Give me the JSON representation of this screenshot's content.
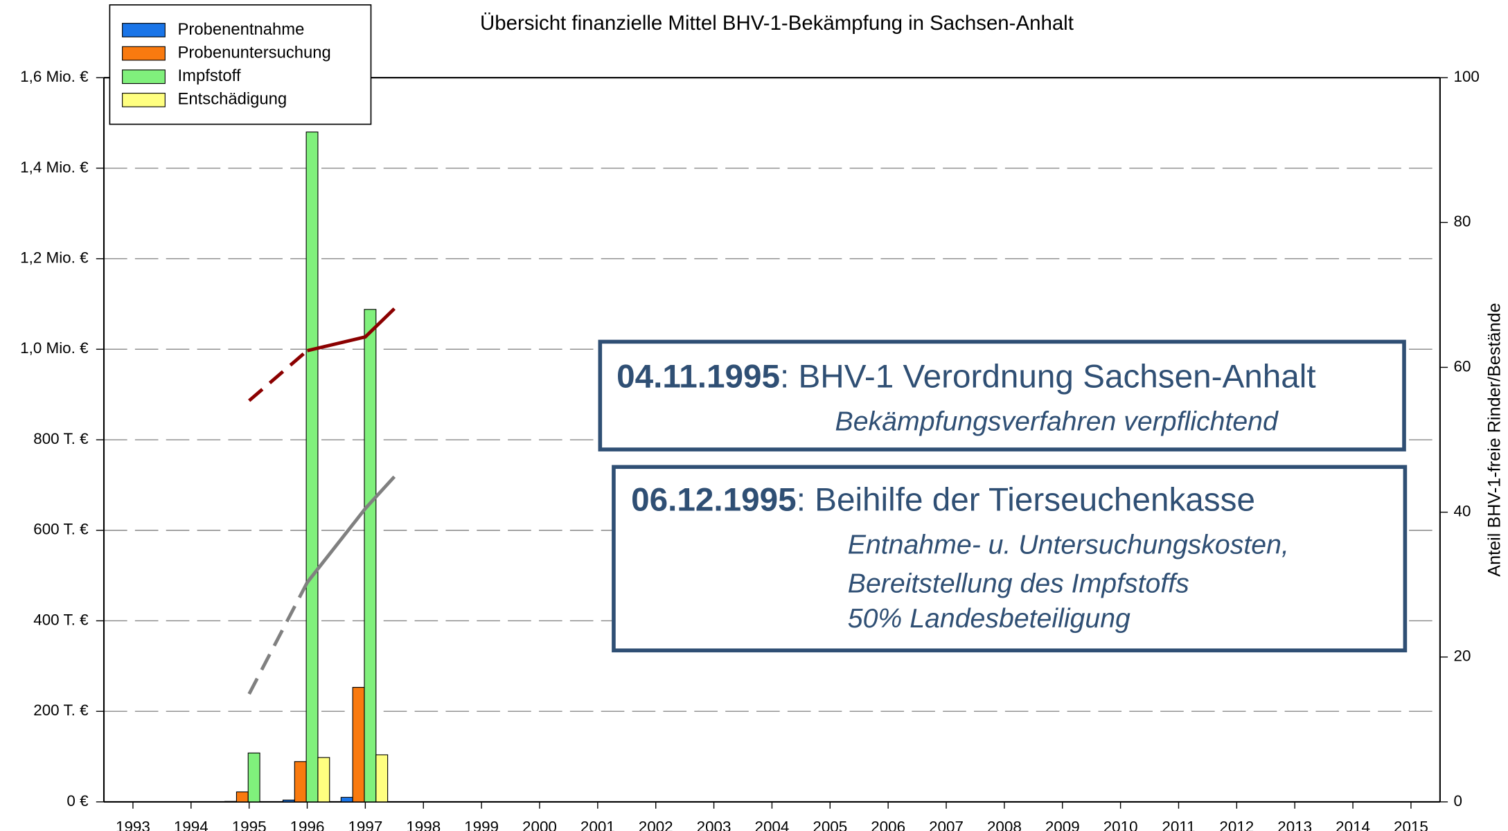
{
  "chart_data": {
    "type": "bar",
    "title": "Übersicht finanzielle Mittel BHV-1-Bekämpfung in Sachsen-Anhalt",
    "y2label": "Anteil BHV-1-freie Rinder/Bestände",
    "categories": [
      "1993",
      "1994",
      "1995",
      "1996",
      "1997",
      "1998",
      "1999",
      "2000",
      "2001",
      "2002",
      "2003",
      "2004",
      "2005",
      "2006",
      "2007",
      "2008",
      "2009",
      "2010",
      "2011",
      "2012",
      "2013",
      "2014",
      "2015"
    ],
    "series": [
      {
        "name": "Probenentnahme",
        "color": "#1a75e8",
        "values": [
          null,
          null,
          1000,
          4000,
          10000,
          null,
          null,
          null,
          null,
          null,
          null,
          null,
          null,
          null,
          null,
          null,
          null,
          null,
          null,
          null,
          null,
          null,
          null
        ]
      },
      {
        "name": "Probenuntersuchung",
        "color": "#f97a0f",
        "values": [
          null,
          null,
          22000,
          89000,
          253000,
          null,
          null,
          null,
          null,
          null,
          null,
          null,
          null,
          null,
          null,
          null,
          null,
          null,
          null,
          null,
          null,
          null,
          null
        ]
      },
      {
        "name": "Impfstoff",
        "color": "#80f07c",
        "values": [
          null,
          null,
          108000,
          1480000,
          1088000,
          null,
          null,
          null,
          null,
          null,
          null,
          null,
          null,
          null,
          null,
          null,
          null,
          null,
          null,
          null,
          null,
          null,
          null
        ]
      },
      {
        "name": "Entschädigung",
        "color": "#ffff80",
        "values": [
          null,
          null,
          null,
          98000,
          104000,
          null,
          null,
          null,
          null,
          null,
          null,
          null,
          null,
          null,
          null,
          null,
          null,
          null,
          null,
          null,
          null,
          null,
          null
        ]
      }
    ],
    "line_series": [
      {
        "type": "line",
        "axis": "y2",
        "color": "#8b0000",
        "dashed": true,
        "x": [
          1995,
          1996
        ],
        "values": [
          55.4,
          62.3
        ]
      },
      {
        "type": "line",
        "axis": "y2",
        "color": "#8b0000",
        "dashed": false,
        "x": [
          1996,
          1997,
          1997.5
        ],
        "values": [
          62.3,
          64.2,
          68.1
        ]
      },
      {
        "type": "line",
        "axis": "y2",
        "color": "#808080",
        "dashed": true,
        "x": [
          1995,
          1996
        ],
        "values": [
          14.9,
          30.3
        ]
      },
      {
        "type": "line",
        "axis": "y2",
        "color": "#808080",
        "dashed": false,
        "x": [
          1996,
          1997,
          1997.5
        ],
        "values": [
          30.3,
          40.5,
          44.9
        ]
      }
    ],
    "ylim": [
      0,
      1600000
    ],
    "yticks": [
      {
        "value": 0,
        "label": "0 €"
      },
      {
        "value": 200000,
        "label": "200 T. €"
      },
      {
        "value": 400000,
        "label": "400 T. €"
      },
      {
        "value": 600000,
        "label": "600 T. €"
      },
      {
        "value": 800000,
        "label": "800 T. €"
      },
      {
        "value": 1000000,
        "label": "1,0 Mio. €"
      },
      {
        "value": 1200000,
        "label": "1,2 Mio. €"
      },
      {
        "value": 1400000,
        "label": "1,4 Mio. €"
      },
      {
        "value": 1600000,
        "label": "1,6 Mio. €"
      }
    ],
    "y2lim": [
      0,
      100
    ],
    "y2ticks": [
      0,
      20,
      40,
      60,
      80,
      100
    ],
    "grid": true,
    "legend": "top-left",
    "annotations": [
      {
        "heading": "04.11.1995",
        "text": ": BHV-1 Verordnung Sachsen-Anhalt",
        "lines": [
          "Bekämpfungsverfahren verpflichtend"
        ]
      },
      {
        "heading": "06.12.1995",
        "text": ": Beihilfe der Tierseuchenkasse",
        "lines": [
          "Entnahme- u. Untersuchungskosten,",
          "Bereitstellung des Impfstoffs",
          "50% Landesbeteiligung"
        ]
      }
    ]
  }
}
